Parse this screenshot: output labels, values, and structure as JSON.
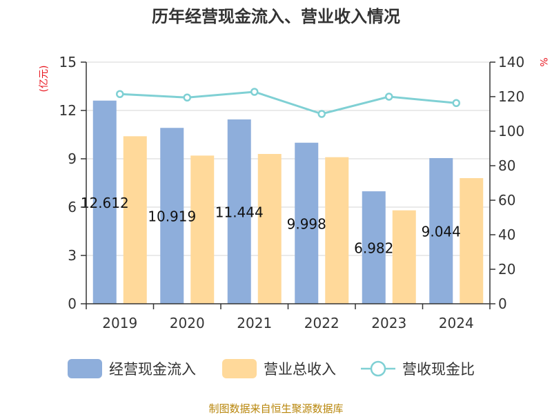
{
  "chart_data": {
    "type": "bar",
    "title": "历年经营现金流入、营业收入情况",
    "categories": [
      "2019",
      "2020",
      "2021",
      "2022",
      "2023",
      "2024"
    ],
    "series": [
      {
        "name": "经营现金流入",
        "kind": "bar",
        "axis": "left",
        "color": "#8eaedb",
        "values": [
          12.612,
          10.919,
          11.444,
          9.998,
          6.982,
          9.044
        ]
      },
      {
        "name": "营业总收入",
        "kind": "bar",
        "axis": "left",
        "color": "#ffd99a",
        "values": [
          10.4,
          9.2,
          9.3,
          9.1,
          5.8,
          7.8
        ]
      },
      {
        "name": "营收现金比",
        "kind": "line",
        "axis": "right",
        "color": "#7fd0d4",
        "values": [
          121.5,
          119.5,
          122.8,
          110.0,
          120.0,
          116.3
        ]
      }
    ],
    "data_labels": [
      "12.612",
      "10.919",
      "11.444",
      "9.998",
      "6.982",
      "9.044"
    ],
    "y_left": {
      "label": "(亿元)",
      "ylim": [
        0,
        15
      ],
      "ticks": [
        0,
        3,
        6,
        9,
        12,
        15
      ]
    },
    "y_right": {
      "label": "%",
      "ylim": [
        0,
        140
      ],
      "ticks": [
        0,
        20,
        40,
        60,
        80,
        100,
        120,
        140
      ]
    },
    "grid": true,
    "legend_position": "bottom"
  },
  "footer": {
    "source": "制图数据来自恒生聚源数据库"
  }
}
